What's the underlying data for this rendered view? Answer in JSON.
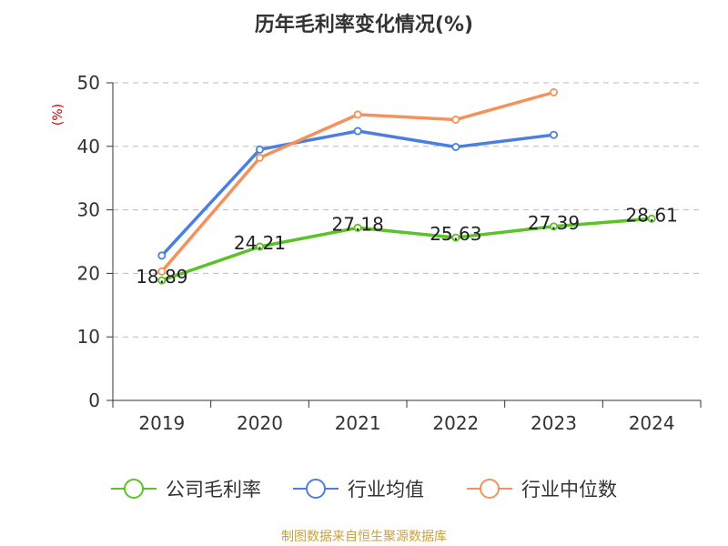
{
  "chart_data": {
    "type": "line",
    "title": "历年毛利率变化情况(%)",
    "ylabel": "(%)",
    "xlabel": "",
    "ylim": [
      0,
      50
    ],
    "yticks": [
      0,
      10,
      20,
      30,
      40,
      50
    ],
    "categories": [
      "2019",
      "2020",
      "2021",
      "2022",
      "2023",
      "2024"
    ],
    "grid": true,
    "legend_position": "bottom",
    "series": [
      {
        "name": "公司毛利率",
        "color": "#5bc227",
        "values": [
          18.89,
          24.21,
          27.18,
          25.63,
          27.39,
          28.61
        ],
        "labels": [
          "18.89",
          "24.21",
          "27.18",
          "25.63",
          "27.39",
          "28.61"
        ]
      },
      {
        "name": "行业均值",
        "color": "#4a7fe0",
        "values": [
          22.8,
          39.5,
          42.4,
          39.9,
          41.8,
          null
        ]
      },
      {
        "name": "行业中位数",
        "color": "#f5915a",
        "values": [
          20.3,
          38.2,
          45.0,
          44.2,
          48.5,
          null
        ]
      }
    ],
    "source": "制图数据来自恒生聚源数据库",
    "colors": {
      "title": "#333333",
      "ylabel": "#cc0000",
      "source": "#c8a23c",
      "grid": "#bbbbbb",
      "axis": "#333333"
    }
  }
}
